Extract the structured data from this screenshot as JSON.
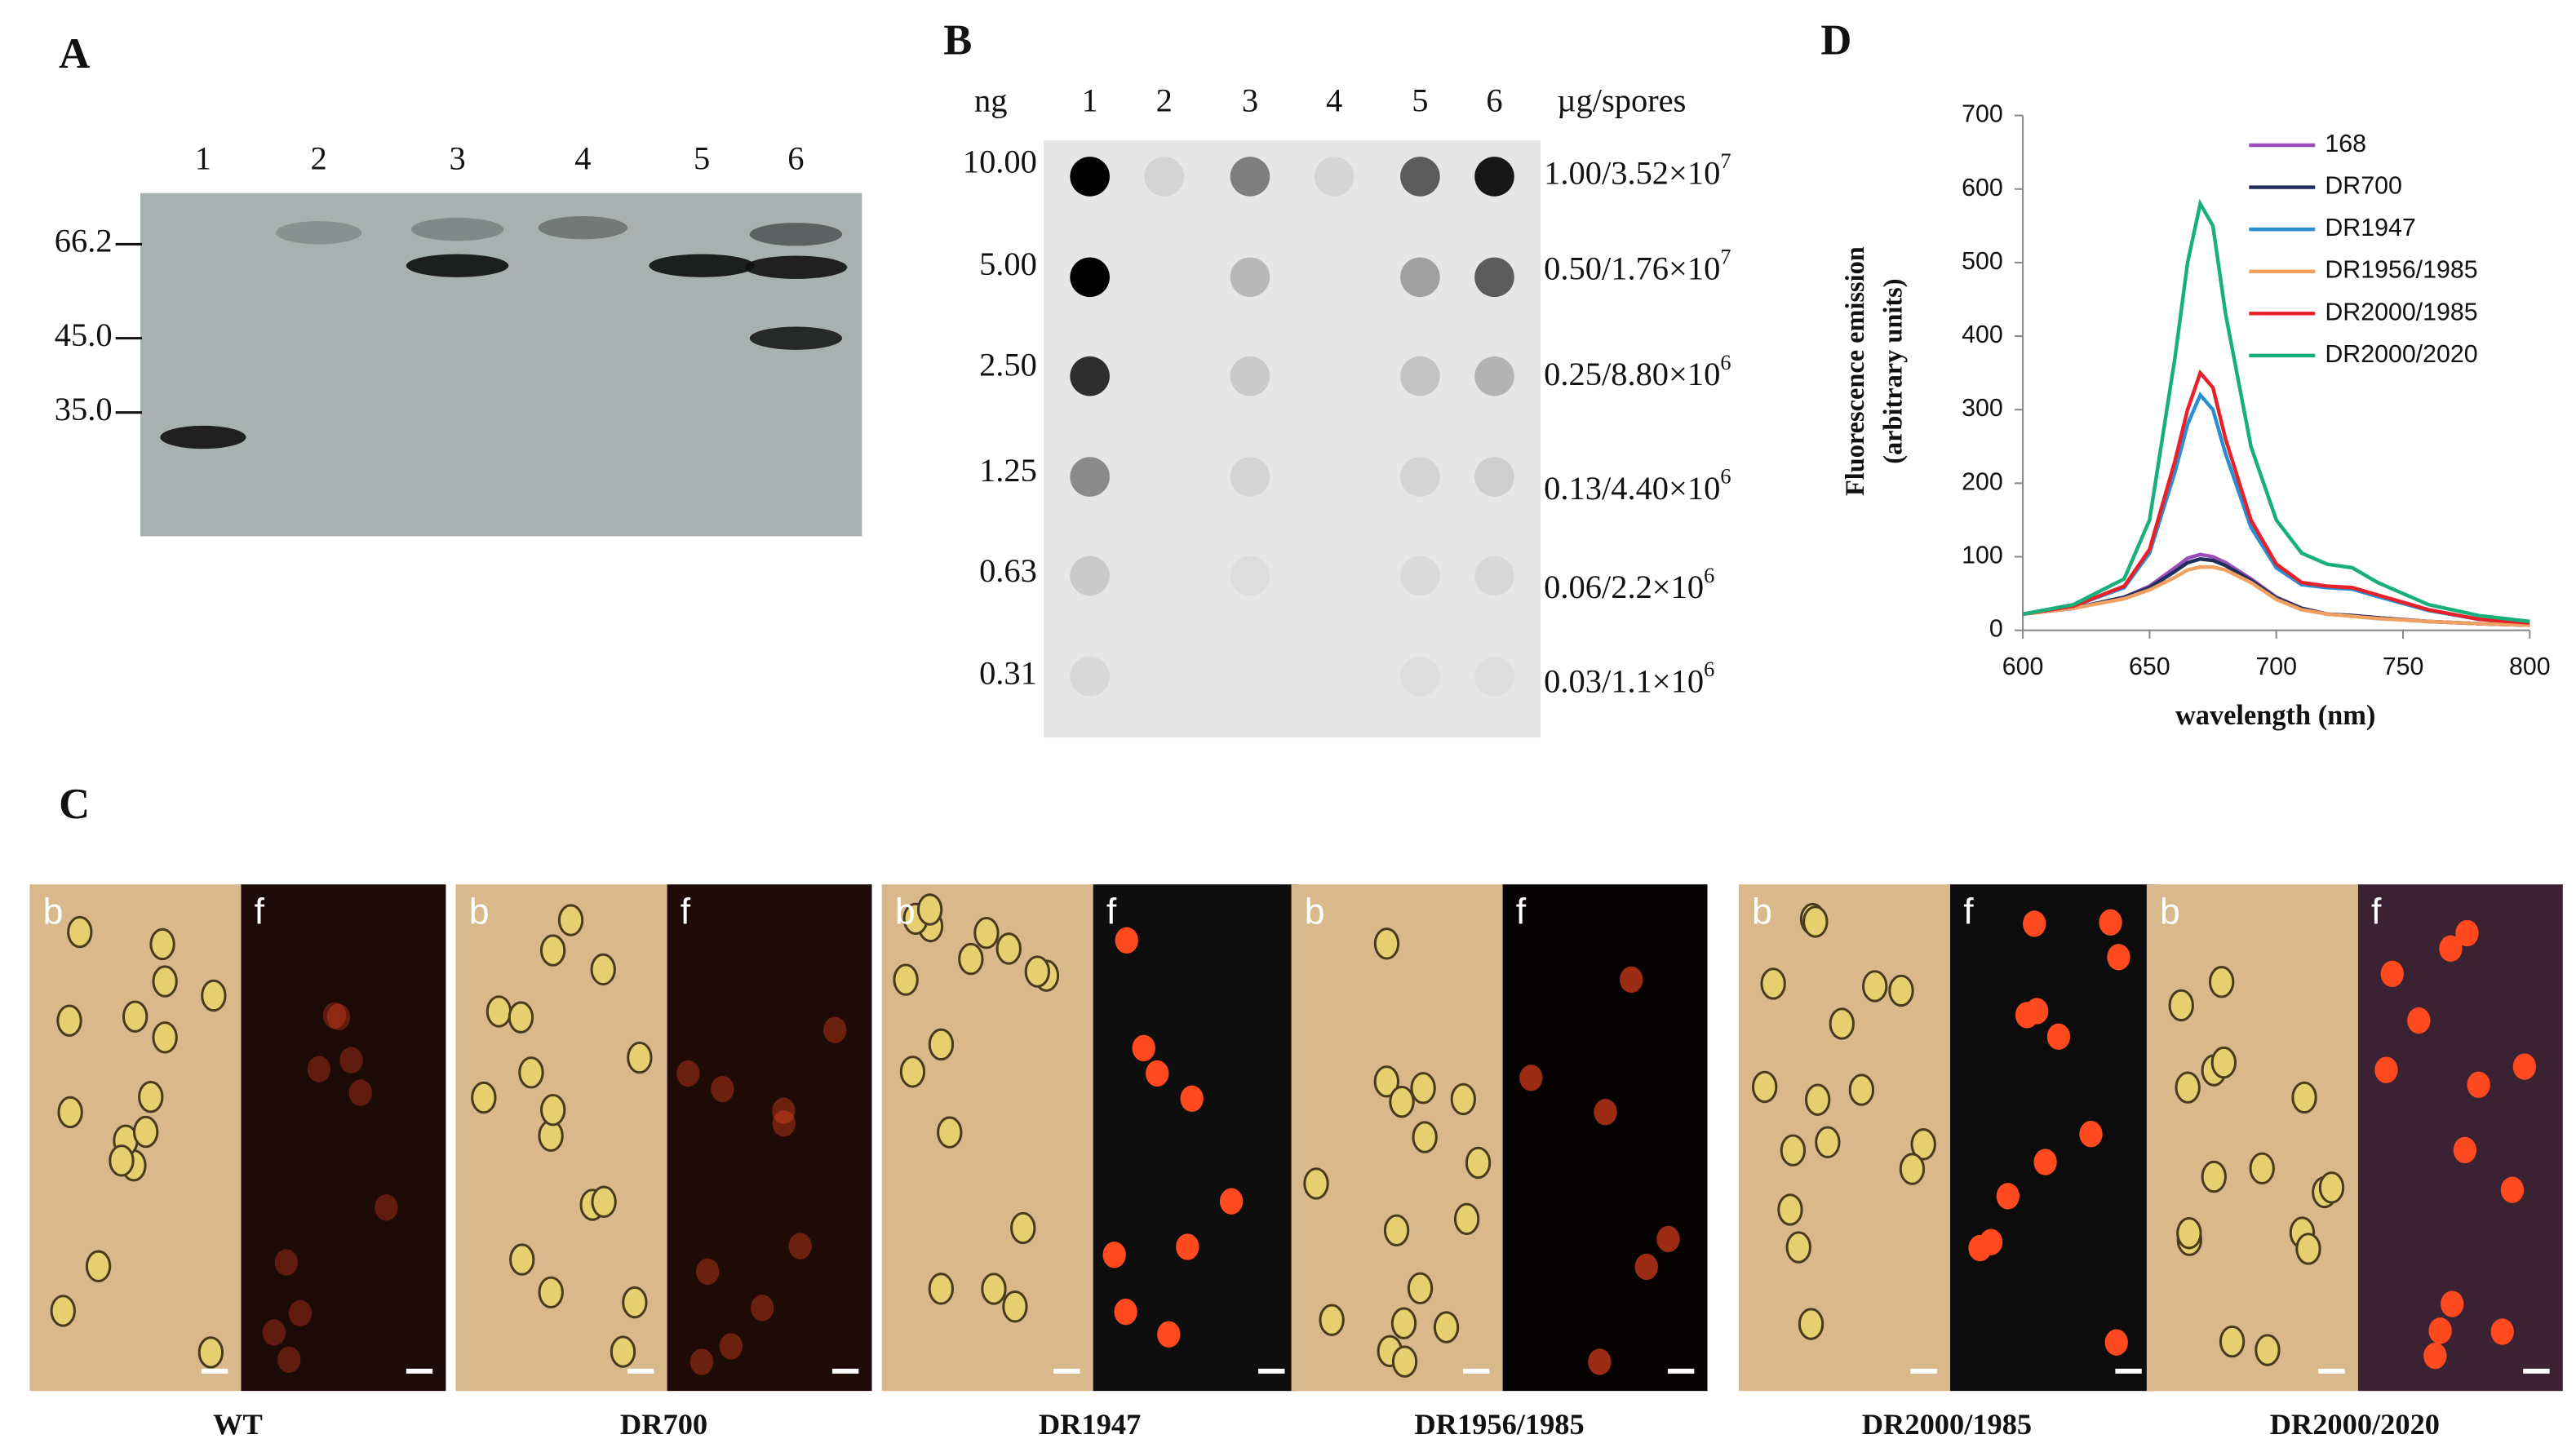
{
  "panel_a": {
    "label": "A",
    "lanes": [
      "1",
      "2",
      "3",
      "4",
      "5",
      "6"
    ],
    "markers": [
      "66.2",
      "45.0",
      "35.0"
    ]
  },
  "panel_b": {
    "label": "B",
    "unit_left": "ng",
    "unit_right": "µg/spores",
    "lanes": [
      "1",
      "2",
      "3",
      "4",
      "5",
      "6"
    ],
    "amounts": [
      "10.00",
      "5.00",
      "2.50",
      "1.25",
      "0.63",
      "0.31"
    ],
    "spores": [
      {
        "base": "1.00/3.52×10",
        "exp": "7"
      },
      {
        "base": "0.50/1.76×10",
        "exp": "7"
      },
      {
        "base": "0.25/8.80×10",
        "exp": "6"
      },
      {
        "base": "0.13/4.40×10",
        "exp": "6"
      },
      {
        "base": "0.06/2.2×10",
        "exp": "6"
      },
      {
        "base": "0.03/1.1×10",
        "exp": "6"
      }
    ]
  },
  "panel_c": {
    "label": "C",
    "samples": [
      {
        "name": "WT",
        "brightfield": "b",
        "fluorescence": "f"
      },
      {
        "name": "DR700",
        "brightfield": "b",
        "fluorescence": "f"
      },
      {
        "name": "DR1947",
        "brightfield": "b",
        "fluorescence": "f"
      },
      {
        "name": "DR1956/1985",
        "brightfield": "b",
        "fluorescence": "f"
      },
      {
        "name": "DR2000/1985",
        "brightfield": "b",
        "fluorescence": "f"
      },
      {
        "name": "DR2000/2020",
        "brightfield": "b",
        "fluorescence": "f"
      }
    ]
  },
  "chart_data": {
    "type": "line",
    "title": "D",
    "x_label": "wavelength (nm)",
    "y_label": [
      "Fluorescence emission",
      "(arbitrary units)"
    ],
    "x": [
      600,
      620,
      640,
      650,
      660,
      665,
      670,
      675,
      680,
      690,
      700,
      710,
      720,
      730,
      740,
      760,
      780,
      800
    ],
    "xlim": [
      600,
      800
    ],
    "xticks": [
      600,
      650,
      700,
      750,
      800
    ],
    "ylim": [
      0,
      700
    ],
    "yticks": [
      0,
      100,
      200,
      300,
      400,
      500,
      600,
      700
    ],
    "grid": false,
    "legend": "upper right",
    "series": [
      {
        "name": "168",
        "color": "#9b4dba",
        "values": [
          22,
          30,
          45,
          60,
          85,
          98,
          103,
          100,
          92,
          70,
          45,
          30,
          22,
          20,
          17,
          12,
          9,
          7
        ]
      },
      {
        "name": "DR700",
        "color": "#1f2f5c",
        "values": [
          22,
          30,
          45,
          58,
          80,
          92,
          97,
          95,
          88,
          68,
          44,
          30,
          22,
          20,
          17,
          12,
          9,
          7
        ]
      },
      {
        "name": "DR1947",
        "color": "#2a8fd0",
        "values": [
          22,
          33,
          58,
          105,
          215,
          280,
          320,
          300,
          240,
          140,
          85,
          62,
          58,
          56,
          46,
          27,
          15,
          10
        ]
      },
      {
        "name": "DR1956/1985",
        "color": "#f0a060",
        "values": [
          22,
          30,
          43,
          55,
          72,
          82,
          86,
          86,
          82,
          65,
          42,
          28,
          22,
          19,
          16,
          12,
          9,
          7
        ]
      },
      {
        "name": "DR2000/1985",
        "color": "#e8202a",
        "values": [
          22,
          33,
          60,
          110,
          230,
          300,
          350,
          330,
          260,
          150,
          90,
          65,
          60,
          58,
          48,
          28,
          15,
          10
        ]
      },
      {
        "name": "DR2000/2020",
        "color": "#18b07a",
        "values": [
          22,
          35,
          70,
          150,
          370,
          500,
          580,
          550,
          430,
          250,
          150,
          105,
          90,
          85,
          65,
          35,
          20,
          12
        ]
      }
    ]
  }
}
